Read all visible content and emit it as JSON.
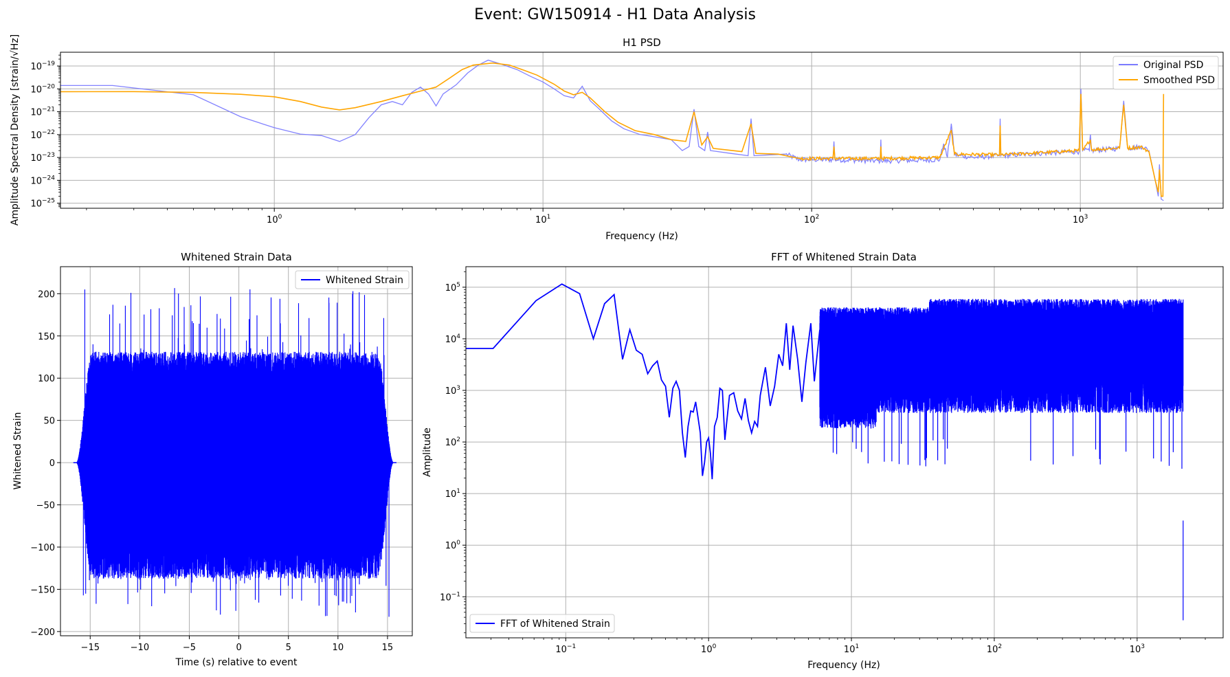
{
  "figure": {
    "suptitle": "Event: GW150914 - H1 Data Analysis"
  },
  "chart_data": [
    {
      "id": "psd",
      "type": "line",
      "title": "H1 PSD",
      "xlabel": "Frequency (Hz)",
      "ylabel": "Amplitude Spectral Density [strain/√Hz]",
      "xscale": "log",
      "yscale": "log",
      "xlim": [
        0.16,
        3400
      ],
      "ylim": [
        6e-26,
        4e-19
      ],
      "xticks": [
        1,
        10,
        100,
        1000
      ],
      "xtick_labels": [
        [
          "10",
          "0"
        ],
        [
          "10",
          "1"
        ],
        [
          "10",
          "2"
        ],
        [
          "10",
          "3"
        ]
      ],
      "yticks": [
        1e-25,
        1e-24,
        1e-23,
        1e-22,
        1e-21,
        1e-20,
        1e-19
      ],
      "ytick_labels": [
        [
          "10",
          "−25"
        ],
        [
          "10",
          "−24"
        ],
        [
          "10",
          "−23"
        ],
        [
          "10",
          "−22"
        ],
        [
          "10",
          "−21"
        ],
        [
          "10",
          "−20"
        ],
        [
          "10",
          "−19"
        ]
      ],
      "grid": true,
      "legend": "upper right",
      "series": [
        {
          "name": "Original PSD",
          "color": "#7b7bff",
          "points": [
            [
              0.16,
              1.4e-20
            ],
            [
              0.25,
              1.4e-20
            ],
            [
              0.5,
              5.5e-21
            ],
            [
              0.75,
              6e-22
            ],
            [
              1.0,
              2e-22
            ],
            [
              1.25,
              1.05e-22
            ],
            [
              1.5,
              9e-23
            ],
            [
              1.75,
              5e-23
            ],
            [
              2.0,
              1e-22
            ],
            [
              2.25,
              5.5e-22
            ],
            [
              2.5,
              2e-21
            ],
            [
              2.75,
              2.8e-21
            ],
            [
              3.0,
              2e-21
            ],
            [
              3.25,
              7e-21
            ],
            [
              3.5,
              1.2e-20
            ],
            [
              3.75,
              6e-21
            ],
            [
              4.0,
              1.8e-21
            ],
            [
              4.25,
              6e-21
            ],
            [
              4.75,
              1.5e-20
            ],
            [
              5.25,
              5e-20
            ],
            [
              5.75,
              1.1e-19
            ],
            [
              6.25,
              1.8e-19
            ],
            [
              7.0,
              1.2e-19
            ],
            [
              8.0,
              7e-20
            ],
            [
              9.0,
              3.5e-20
            ],
            [
              10.0,
              2e-20
            ],
            [
              11.0,
              1e-20
            ],
            [
              12.0,
              5e-21
            ],
            [
              13.0,
              4e-21
            ],
            [
              14.0,
              1.3e-20
            ],
            [
              15.0,
              3e-21
            ],
            [
              16.0,
              1.5e-21
            ],
            [
              18.0,
              4e-22
            ],
            [
              20.0,
              1.8e-22
            ],
            [
              23.0,
              1e-22
            ],
            [
              26.0,
              8e-23
            ],
            [
              30.0,
              6e-23
            ],
            [
              33.0,
              2e-23
            ],
            [
              35.0,
              3e-23
            ],
            [
              36.5,
              1.3e-21
            ],
            [
              38.0,
              3e-23
            ],
            [
              40.0,
              2e-23
            ],
            [
              41.0,
              1.3e-22
            ],
            [
              42.0,
              2e-23
            ],
            [
              50.0,
              1.5e-23
            ],
            [
              58.0,
              1.2e-23
            ],
            [
              59.5,
              5e-22
            ],
            [
              61.0,
              1.2e-23
            ],
            [
              70.0,
              1.3e-23
            ],
            [
              80.0,
              1.4e-23
            ],
            [
              90.0,
              8e-24
            ],
            [
              120.0,
              8e-24
            ],
            [
              121,
              5e-23
            ],
            [
              122,
              8e-24
            ],
            [
              180,
              7e-24
            ],
            [
              181,
              6e-23
            ],
            [
              182,
              7e-24
            ],
            [
              300,
              8e-24
            ],
            [
              310,
              4e-23
            ],
            [
              320,
              1e-23
            ],
            [
              331,
              3e-22
            ],
            [
              340,
              1.3e-23
            ],
            [
              400,
              1e-23
            ],
            [
              500,
              1.2e-23
            ],
            [
              503,
              5e-22
            ],
            [
              506,
              1.2e-23
            ],
            [
              700,
              1.5e-23
            ],
            [
              990,
              1.8e-23
            ],
            [
              1005,
              1e-20
            ],
            [
              1020,
              2e-23
            ],
            [
              1080,
              2e-23
            ],
            [
              1090,
              1e-22
            ],
            [
              1100,
              2e-23
            ],
            [
              1400,
              2.5e-23
            ],
            [
              1450,
              3e-21
            ],
            [
              1500,
              2.5e-23
            ],
            [
              1700,
              3e-23
            ],
            [
              1800,
              2e-23
            ],
            [
              1900,
              1e-24
            ],
            [
              1950,
              2e-25
            ],
            [
              1970,
              5e-24
            ],
            [
              2000,
              1.5e-25
            ],
            [
              2040,
              1.3e-25
            ]
          ]
        },
        {
          "name": "Smoothed PSD",
          "color": "#ffa500",
          "points": [
            [
              0.16,
              7.5e-21
            ],
            [
              0.3,
              7.6e-21
            ],
            [
              0.5,
              7e-21
            ],
            [
              0.75,
              5.8e-21
            ],
            [
              1.0,
              4.5e-21
            ],
            [
              1.25,
              2.8e-21
            ],
            [
              1.5,
              1.6e-21
            ],
            [
              1.75,
              1.2e-21
            ],
            [
              2.0,
              1.5e-21
            ],
            [
              2.5,
              2.8e-21
            ],
            [
              3.0,
              5e-21
            ],
            [
              3.5,
              8e-21
            ],
            [
              4.0,
              1.2e-20
            ],
            [
              4.5,
              3e-20
            ],
            [
              5.0,
              7e-20
            ],
            [
              5.5,
              1.1e-19
            ],
            [
              6.5,
              1.35e-19
            ],
            [
              7.5,
              1.1e-19
            ],
            [
              8.5,
              6.5e-20
            ],
            [
              9.5,
              4e-20
            ],
            [
              11.0,
              1.6e-20
            ],
            [
              12.0,
              8e-21
            ],
            [
              13.0,
              5.5e-21
            ],
            [
              14.0,
              7e-21
            ],
            [
              15.0,
              4e-21
            ],
            [
              17.0,
              1e-21
            ],
            [
              19.0,
              3.5e-22
            ],
            [
              22.0,
              1.5e-22
            ],
            [
              26.0,
              1e-22
            ],
            [
              30.0,
              6e-23
            ],
            [
              34.0,
              5e-23
            ],
            [
              36.5,
              1e-21
            ],
            [
              39.0,
              3.5e-23
            ],
            [
              41.0,
              8e-23
            ],
            [
              43.0,
              2.5e-23
            ],
            [
              55.0,
              1.8e-23
            ],
            [
              59.5,
              3e-22
            ],
            [
              62.0,
              1.5e-23
            ],
            [
              75.0,
              1.4e-23
            ],
            [
              90.0,
              9e-24
            ],
            [
              120,
              9e-24
            ],
            [
              121,
              3e-23
            ],
            [
              122,
              9e-24
            ],
            [
              180,
              9e-24
            ],
            [
              181,
              3e-23
            ],
            [
              182,
              9e-24
            ],
            [
              300,
              1e-23
            ],
            [
              331,
              1.5e-22
            ],
            [
              340,
              1.4e-23
            ],
            [
              500,
              1.3e-23
            ],
            [
              503,
              2.5e-22
            ],
            [
              506,
              1.3e-23
            ],
            [
              700,
              1.6e-23
            ],
            [
              990,
              2e-23
            ],
            [
              1005,
              6e-21
            ],
            [
              1020,
              2e-23
            ],
            [
              1090,
              6e-23
            ],
            [
              1100,
              2.2e-23
            ],
            [
              1400,
              2.6e-23
            ],
            [
              1450,
              2e-21
            ],
            [
              1500,
              2.6e-23
            ],
            [
              1700,
              2.8e-23
            ],
            [
              1800,
              1.8e-23
            ],
            [
              1900,
              1e-24
            ],
            [
              1950,
              3e-25
            ],
            [
              1970,
              3e-24
            ],
            [
              2000,
              2e-25
            ],
            [
              2030,
              2e-25
            ],
            [
              2040,
              6e-21
            ]
          ]
        }
      ]
    },
    {
      "id": "whitened",
      "type": "line",
      "title": "Whitened Strain Data",
      "xlabel": "Time (s) relative to event",
      "ylabel": "Whitened Strain",
      "xlim": [
        -18,
        17.5
      ],
      "ylim": [
        -205,
        232
      ],
      "xticks": [
        -15,
        -10,
        -5,
        0,
        5,
        10,
        15
      ],
      "xtick_labels": [
        "−15",
        "−10",
        "−5",
        "0",
        "5",
        "10",
        "15"
      ],
      "yticks": [
        -200,
        -150,
        -100,
        -50,
        0,
        50,
        100,
        150,
        200
      ],
      "ytick_labels": [
        "−200",
        "−150",
        "−100",
        "−50",
        "0",
        "50",
        "100",
        "150",
        "200"
      ],
      "grid": true,
      "legend": "upper right",
      "series": [
        {
          "name": "Whitened Strain",
          "color": "#0000ff",
          "t_range": [
            -16.4,
            15.6
          ],
          "envelope_peak": 125,
          "spike_max": 211,
          "spike_min": -183
        }
      ]
    },
    {
      "id": "fft",
      "type": "line",
      "title": "FFT of Whitened Strain Data",
      "xlabel": "Frequency (Hz)",
      "ylabel": "Amplitude",
      "xscale": "log",
      "yscale": "log",
      "xlim": [
        0.02,
        4000
      ],
      "ylim": [
        0.016,
        250000.0
      ],
      "xticks": [
        0.1,
        1,
        10,
        100,
        1000
      ],
      "xtick_labels": [
        [
          "10",
          "−1"
        ],
        [
          "10",
          "0"
        ],
        [
          "10",
          "1"
        ],
        [
          "10",
          "2"
        ],
        [
          "10",
          "3"
        ]
      ],
      "yticks": [
        0.1,
        1,
        10,
        100,
        1000,
        10000,
        100000
      ],
      "ytick_labels": [
        [
          "10",
          "−1"
        ],
        [
          "10",
          "0"
        ],
        [
          "10",
          "1"
        ],
        [
          "10",
          "2"
        ],
        [
          "10",
          "3"
        ],
        [
          "10",
          "4"
        ],
        [
          "10",
          "5"
        ]
      ],
      "grid": true,
      "legend": "lower left",
      "series": [
        {
          "name": "FFT of Whitened Strain",
          "color": "#0000ff",
          "points": [
            [
              0.02,
              6500
            ],
            [
              0.031,
              6500
            ],
            [
              0.062,
              55000
            ],
            [
              0.094,
              115000
            ],
            [
              0.125,
              75000
            ],
            [
              0.156,
              10000
            ],
            [
              0.187,
              48000
            ],
            [
              0.218,
              72000
            ],
            [
              0.25,
              4000
            ],
            [
              0.281,
              15000
            ],
            [
              0.312,
              6000
            ],
            [
              0.343,
              5000
            ],
            [
              0.375,
              2100
            ],
            [
              0.406,
              3000
            ],
            [
              0.437,
              3700
            ],
            [
              0.468,
              1600
            ],
            [
              0.5,
              1200
            ],
            [
              0.531,
              300
            ],
            [
              0.562,
              1100
            ],
            [
              0.593,
              1500
            ],
            [
              0.625,
              1000
            ],
            [
              0.656,
              150
            ],
            [
              0.687,
              50
            ],
            [
              0.718,
              200
            ],
            [
              0.75,
              400
            ],
            [
              0.781,
              380
            ],
            [
              0.812,
              600
            ],
            [
              0.843,
              300
            ],
            [
              0.875,
              150
            ],
            [
              0.906,
              22
            ],
            [
              0.937,
              40
            ],
            [
              0.968,
              100
            ],
            [
              1.0,
              120
            ],
            [
              1.03,
              60
            ],
            [
              1.06,
              19
            ],
            [
              1.1,
              200
            ],
            [
              1.15,
              300
            ],
            [
              1.2,
              1100
            ],
            [
              1.25,
              1000
            ],
            [
              1.3,
              110
            ],
            [
              1.4,
              800
            ],
            [
              1.5,
              900
            ],
            [
              1.6,
              400
            ],
            [
              1.7,
              280
            ],
            [
              1.8,
              700
            ],
            [
              1.9,
              260
            ],
            [
              2.0,
              150
            ],
            [
              2.1,
              250
            ],
            [
              2.2,
              200
            ],
            [
              2.3,
              800
            ],
            [
              2.5,
              2800
            ],
            [
              2.7,
              500
            ],
            [
              2.9,
              1200
            ],
            [
              3.1,
              5000
            ],
            [
              3.3,
              3000
            ],
            [
              3.5,
              20000
            ],
            [
              3.7,
              2500
            ],
            [
              3.9,
              18000
            ],
            [
              4.2,
              4000
            ],
            [
              4.5,
              600
            ],
            [
              4.8,
              3500
            ],
            [
              5.2,
              20000
            ],
            [
              5.5,
              1500
            ],
            [
              6.0,
              15000
            ]
          ],
          "dense_range": [
            6,
            2100
          ],
          "dense_center": 12000
        }
      ]
    }
  ]
}
